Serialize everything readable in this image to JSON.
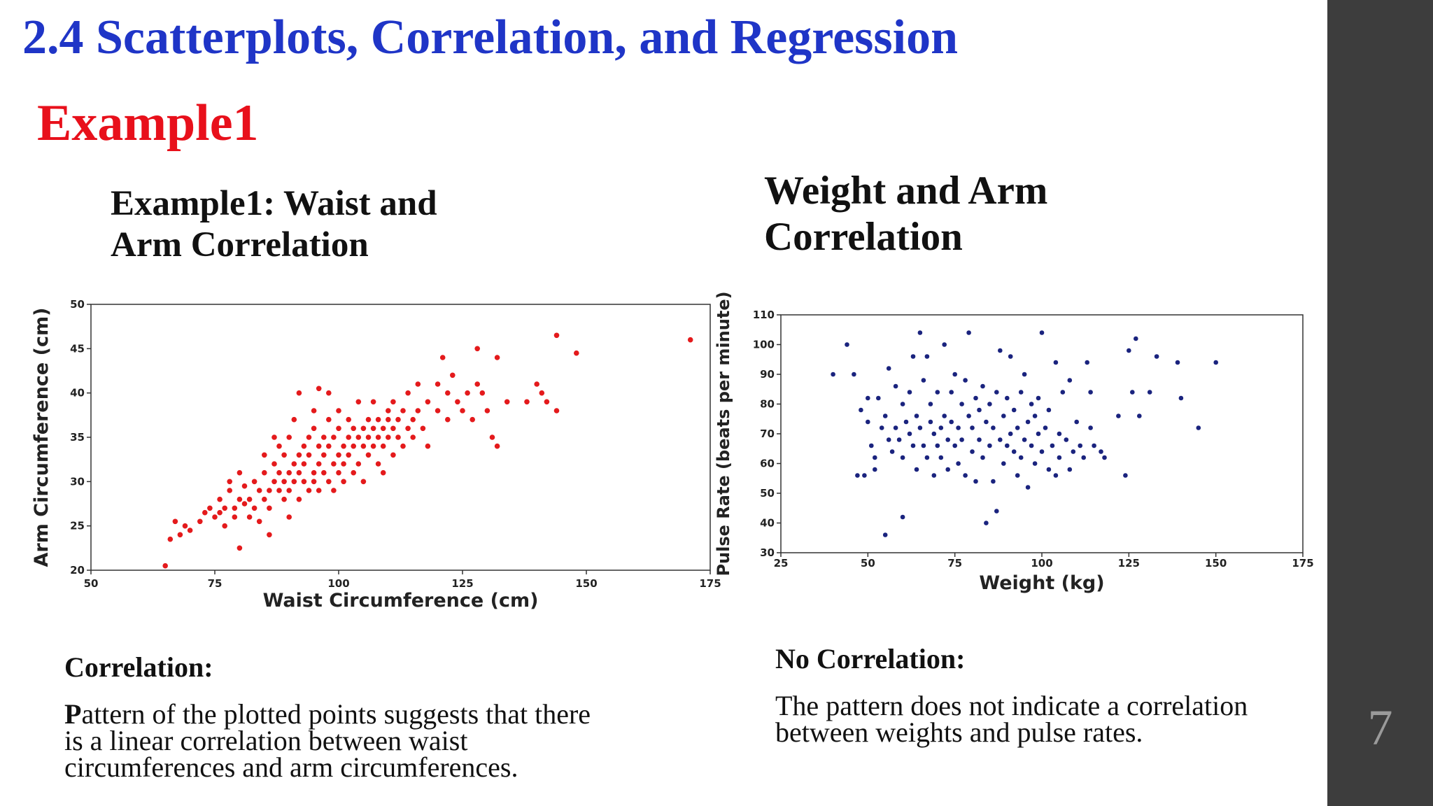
{
  "slide": {
    "title": "2.4 Scatterplots, Correlation, and Regression",
    "subtitle": "Example1",
    "page_number": "7",
    "colors": {
      "title": "#1f35c7",
      "subtitle": "#e8101b",
      "sidebar": "#3d3d3d"
    }
  },
  "left": {
    "heading": "Example1: Waist and Arm Correlation",
    "caption_head": "Correlation:",
    "caption_body_first": "P",
    "caption_body_rest": "attern of the plotted points suggests that there is a linear correlation between waist circumferences and arm circumferences."
  },
  "right": {
    "heading": "Weight and Arm Correlation",
    "caption_head": "No Correlation:",
    "caption_body": "The pattern does not indicate a correlation between weights and pulse rates."
  },
  "chart_data": [
    {
      "type": "scatter",
      "color": "#e41a1c",
      "xlabel": "Waist Circumference (cm)",
      "ylabel": "Arm Circumference (cm)",
      "xlim": [
        50,
        175
      ],
      "ylim": [
        20,
        50
      ],
      "xticks": [
        50,
        75,
        100,
        125,
        150,
        175
      ],
      "yticks": [
        20,
        25,
        30,
        35,
        40,
        45,
        50
      ],
      "points": [
        [
          65,
          20.5
        ],
        [
          66,
          23.5
        ],
        [
          67,
          25.5
        ],
        [
          68,
          24
        ],
        [
          69,
          25
        ],
        [
          70,
          24.5
        ],
        [
          72,
          25.5
        ],
        [
          73,
          26.5
        ],
        [
          74,
          27
        ],
        [
          75,
          26
        ],
        [
          76,
          26.5
        ],
        [
          76,
          28
        ],
        [
          77,
          27
        ],
        [
          77,
          25
        ],
        [
          78,
          30
        ],
        [
          78,
          29
        ],
        [
          79,
          27
        ],
        [
          79,
          26
        ],
        [
          80,
          22.5
        ],
        [
          80,
          28
        ],
        [
          80,
          31
        ],
        [
          81,
          27.5
        ],
        [
          81,
          29.5
        ],
        [
          82,
          28
        ],
        [
          82,
          26
        ],
        [
          83,
          30
        ],
        [
          83,
          27
        ],
        [
          84,
          29
        ],
        [
          84,
          25.5
        ],
        [
          85,
          28
        ],
        [
          85,
          31
        ],
        [
          85,
          33
        ],
        [
          86,
          29
        ],
        [
          86,
          27
        ],
        [
          86,
          24
        ],
        [
          87,
          30
        ],
        [
          87,
          32
        ],
        [
          87,
          35
        ],
        [
          88,
          29
        ],
        [
          88,
          31
        ],
        [
          88,
          34
        ],
        [
          89,
          30
        ],
        [
          89,
          28
        ],
        [
          89,
          33
        ],
        [
          90,
          31
        ],
        [
          90,
          35
        ],
        [
          90,
          29
        ],
        [
          90,
          26
        ],
        [
          91,
          32
        ],
        [
          91,
          30
        ],
        [
          91,
          37
        ],
        [
          92,
          31
        ],
        [
          92,
          33
        ],
        [
          92,
          28
        ],
        [
          92,
          40
        ],
        [
          93,
          34
        ],
        [
          93,
          30
        ],
        [
          93,
          32
        ],
        [
          94,
          29
        ],
        [
          94,
          35
        ],
        [
          94,
          33
        ],
        [
          95,
          31
        ],
        [
          95,
          36
        ],
        [
          95,
          30
        ],
        [
          95,
          38
        ],
        [
          96,
          32
        ],
        [
          96,
          34
        ],
        [
          96,
          29
        ],
        [
          96,
          40.5
        ],
        [
          97,
          33
        ],
        [
          97,
          35
        ],
        [
          97,
          31
        ],
        [
          98,
          30
        ],
        [
          98,
          34
        ],
        [
          98,
          37
        ],
        [
          98,
          40
        ],
        [
          99,
          32
        ],
        [
          99,
          35
        ],
        [
          99,
          29
        ],
        [
          100,
          33
        ],
        [
          100,
          36
        ],
        [
          100,
          31
        ],
        [
          100,
          38
        ],
        [
          101,
          34
        ],
        [
          101,
          32
        ],
        [
          101,
          30
        ],
        [
          102,
          35
        ],
        [
          102,
          33
        ],
        [
          102,
          37
        ],
        [
          103,
          34
        ],
        [
          103,
          31
        ],
        [
          103,
          36
        ],
        [
          104,
          35
        ],
        [
          104,
          32
        ],
        [
          104,
          39
        ],
        [
          105,
          36
        ],
        [
          105,
          34
        ],
        [
          105,
          30
        ],
        [
          106,
          35
        ],
        [
          106,
          37
        ],
        [
          106,
          33
        ],
        [
          107,
          36
        ],
        [
          107,
          34
        ],
        [
          107,
          39
        ],
        [
          108,
          35
        ],
        [
          108,
          32
        ],
        [
          108,
          37
        ],
        [
          109,
          36
        ],
        [
          109,
          34
        ],
        [
          109,
          31
        ],
        [
          110,
          37
        ],
        [
          110,
          35
        ],
        [
          110,
          38
        ],
        [
          111,
          36
        ],
        [
          111,
          33
        ],
        [
          111,
          39
        ],
        [
          112,
          37
        ],
        [
          112,
          35
        ],
        [
          113,
          38
        ],
        [
          113,
          34
        ],
        [
          114,
          36
        ],
        [
          114,
          40
        ],
        [
          115,
          37
        ],
        [
          115,
          35
        ],
        [
          116,
          41
        ],
        [
          116,
          38
        ],
        [
          117,
          36
        ],
        [
          118,
          39
        ],
        [
          118,
          34
        ],
        [
          120,
          41
        ],
        [
          120,
          38
        ],
        [
          121,
          44
        ],
        [
          122,
          40
        ],
        [
          122,
          37
        ],
        [
          123,
          42
        ],
        [
          124,
          39
        ],
        [
          125,
          38
        ],
        [
          126,
          40
        ],
        [
          127,
          37
        ],
        [
          128,
          45
        ],
        [
          128,
          41
        ],
        [
          129,
          40
        ],
        [
          130,
          38
        ],
        [
          131,
          35
        ],
        [
          132,
          44
        ],
        [
          132,
          34
        ],
        [
          134,
          39
        ],
        [
          138,
          39
        ],
        [
          140,
          41
        ],
        [
          141,
          40
        ],
        [
          142,
          39
        ],
        [
          144,
          38
        ],
        [
          144,
          46.5
        ],
        [
          148,
          44.5
        ],
        [
          171,
          46
        ]
      ]
    },
    {
      "type": "scatter",
      "color": "#1a237e",
      "xlabel": "Weight (kg)",
      "ylabel": "Pulse Rate (beats per minute)",
      "xlim": [
        25,
        175
      ],
      "ylim": [
        30,
        110
      ],
      "xticks": [
        25,
        50,
        75,
        100,
        125,
        150,
        175
      ],
      "yticks": [
        30,
        40,
        50,
        60,
        70,
        80,
        90,
        100,
        110
      ],
      "points": [
        [
          40,
          90
        ],
        [
          44,
          100
        ],
        [
          46,
          90
        ],
        [
          47,
          56
        ],
        [
          48,
          78
        ],
        [
          49,
          56
        ],
        [
          50,
          82
        ],
        [
          50,
          74
        ],
        [
          51,
          66
        ],
        [
          52,
          62
        ],
        [
          52,
          58
        ],
        [
          53,
          82
        ],
        [
          54,
          72
        ],
        [
          55,
          36
        ],
        [
          55,
          76
        ],
        [
          56,
          68
        ],
        [
          56,
          92
        ],
        [
          57,
          64
        ],
        [
          58,
          72
        ],
        [
          58,
          86
        ],
        [
          59,
          68
        ],
        [
          60,
          80
        ],
        [
          60,
          42
        ],
        [
          60,
          62
        ],
        [
          61,
          74
        ],
        [
          62,
          70
        ],
        [
          62,
          84
        ],
        [
          63,
          96
        ],
        [
          63,
          66
        ],
        [
          64,
          76
        ],
        [
          64,
          58
        ],
        [
          65,
          104
        ],
        [
          65,
          72
        ],
        [
          66,
          66
        ],
        [
          66,
          88
        ],
        [
          67,
          96
        ],
        [
          67,
          62
        ],
        [
          68,
          80
        ],
        [
          68,
          74
        ],
        [
          69,
          56
        ],
        [
          69,
          70
        ],
        [
          70,
          66
        ],
        [
          70,
          84
        ],
        [
          71,
          72
        ],
        [
          71,
          62
        ],
        [
          72,
          100
        ],
        [
          72,
          76
        ],
        [
          73,
          68
        ],
        [
          73,
          58
        ],
        [
          74,
          74
        ],
        [
          74,
          84
        ],
        [
          75,
          66
        ],
        [
          75,
          90
        ],
        [
          76,
          72
        ],
        [
          76,
          60
        ],
        [
          77,
          80
        ],
        [
          77,
          68
        ],
        [
          78,
          88
        ],
        [
          78,
          56
        ],
        [
          79,
          76
        ],
        [
          79,
          104
        ],
        [
          80,
          64
        ],
        [
          80,
          72
        ],
        [
          81,
          82
        ],
        [
          81,
          54
        ],
        [
          82,
          68
        ],
        [
          82,
          78
        ],
        [
          83,
          86
        ],
        [
          83,
          62
        ],
        [
          84,
          74
        ],
        [
          84,
          40
        ],
        [
          85,
          66
        ],
        [
          85,
          80
        ],
        [
          86,
          54
        ],
        [
          86,
          72
        ],
        [
          87,
          84
        ],
        [
          87,
          44
        ],
        [
          88,
          68
        ],
        [
          88,
          98
        ],
        [
          89,
          76
        ],
        [
          89,
          60
        ],
        [
          90,
          82
        ],
        [
          90,
          66
        ],
        [
          91,
          70
        ],
        [
          91,
          96
        ],
        [
          92,
          64
        ],
        [
          92,
          78
        ],
        [
          93,
          72
        ],
        [
          93,
          56
        ],
        [
          94,
          84
        ],
        [
          94,
          62
        ],
        [
          95,
          68
        ],
        [
          95,
          90
        ],
        [
          96,
          74
        ],
        [
          96,
          52
        ],
        [
          97,
          66
        ],
        [
          97,
          80
        ],
        [
          98,
          60
        ],
        [
          98,
          76
        ],
        [
          99,
          70
        ],
        [
          99,
          82
        ],
        [
          100,
          64
        ],
        [
          100,
          104
        ],
        [
          101,
          72
        ],
        [
          102,
          58
        ],
        [
          102,
          78
        ],
        [
          103,
          66
        ],
        [
          104,
          94
        ],
        [
          104,
          56
        ],
        [
          105,
          70
        ],
        [
          105,
          62
        ],
        [
          106,
          84
        ],
        [
          107,
          68
        ],
        [
          108,
          88
        ],
        [
          108,
          58
        ],
        [
          109,
          64
        ],
        [
          110,
          74
        ],
        [
          111,
          66
        ],
        [
          112,
          62
        ],
        [
          113,
          94
        ],
        [
          114,
          84
        ],
        [
          114,
          72
        ],
        [
          115,
          66
        ],
        [
          117,
          64
        ],
        [
          118,
          62
        ],
        [
          122,
          76
        ],
        [
          124,
          56
        ],
        [
          125,
          98
        ],
        [
          126,
          84
        ],
        [
          127,
          102
        ],
        [
          128,
          76
        ],
        [
          131,
          84
        ],
        [
          133,
          96
        ],
        [
          139,
          94
        ],
        [
          140,
          82
        ],
        [
          145,
          72
        ],
        [
          150,
          94
        ]
      ]
    }
  ]
}
